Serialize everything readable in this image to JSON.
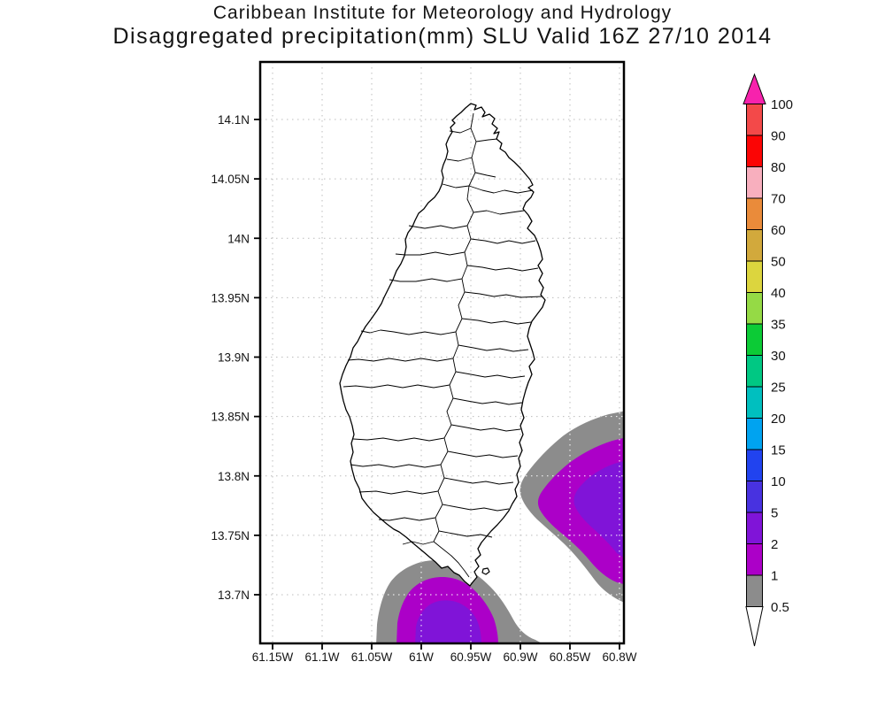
{
  "title": {
    "line1": "Caribbean Institute for Meteorology and Hydrology",
    "line2": "Disaggregated precipitation(mm) SLU Valid 16Z 27/10 2014"
  },
  "axes": {
    "lat_labels": [
      "14.1N",
      "14.05N",
      "14N",
      "13.95N",
      "13.9N",
      "13.85N",
      "13.8N",
      "13.75N",
      "13.7N"
    ],
    "lon_labels": [
      "61.15W",
      "61.1W",
      "61.05W",
      "61W",
      "60.95W",
      "60.9W",
      "60.85W",
      "60.8W"
    ]
  },
  "colorbar": {
    "levels_top_to_bottom": [
      "100",
      "90",
      "80",
      "70",
      "60",
      "50",
      "40",
      "35",
      "30",
      "25",
      "20",
      "15",
      "10",
      "5",
      "2",
      "1",
      "0.5"
    ],
    "segment_colors_top_to_bottom": [
      "#f34949",
      "#fb0505",
      "#f8afbe",
      "#ea8b3a",
      "#d2a93c",
      "#dcd53e",
      "#95da45",
      "#0ccb36",
      "#00c883",
      "#00bfbf",
      "#00a3f0",
      "#2143ef",
      "#4832e0",
      "#8014d8",
      "#ac00c8",
      "#8c8c8c"
    ],
    "above_max_color": "#f722ad",
    "below_min_color": "#ffffff"
  },
  "map_colors": {
    "band_0_5_to_1": "#8c8c8c",
    "band_1_to_2": "#ac00c8",
    "band_2_to_5": "#8014d8",
    "coastline": "#000000",
    "gridline": "#bcbcbc",
    "gridline_on_shading": "#ffffff"
  },
  "chart_data": {
    "type": "contour",
    "title": "Caribbean Institute for Meteorology and Hydrology",
    "subtitle": "Disaggregated precipitation(mm) SLU Valid 16Z 27/10 2014",
    "variable": "precipitation",
    "units": "mm",
    "region_code": "SLU",
    "valid_time": "16Z 27/10 2014",
    "lat_ticks_deg_n": [
      14.1,
      14.05,
      14.0,
      13.95,
      13.9,
      13.85,
      13.8,
      13.75,
      13.7
    ],
    "lon_ticks_deg_w": [
      61.15,
      61.1,
      61.05,
      61.0,
      60.95,
      60.9,
      60.85,
      60.8
    ],
    "contour_levels_mm": [
      0.5,
      1,
      2,
      5,
      10,
      15,
      20,
      25,
      30,
      35,
      40,
      50,
      60,
      70,
      80,
      90,
      100
    ],
    "grid": "dotted lat/lon graticule every 0.05 degrees",
    "legend_position": "right vertical colorbar with above-max and below-min arrows",
    "features": [
      {
        "name": "Saint Lucia island outline with watershed (basin) boundaries",
        "fill": "white",
        "line_color": "black"
      },
      {
        "name": "southern offshore precipitation cell",
        "approx_center_lat_n": 13.67,
        "approx_center_lon_w": 60.97,
        "bands_mm": [
          "0.5-1",
          "1-2",
          "2-5"
        ],
        "max_band_mm": "2-5",
        "note": "clipped by bottom axis"
      },
      {
        "name": "eastern offshore precipitation cell",
        "approx_center_lat_n": 13.77,
        "approx_center_lon_w": 60.79,
        "bands_mm": [
          "0.5-1",
          "1-2",
          "2-5"
        ],
        "max_band_mm": "2-5",
        "note": "clipped by right axis, grazes east coast near 13.78N"
      }
    ]
  }
}
